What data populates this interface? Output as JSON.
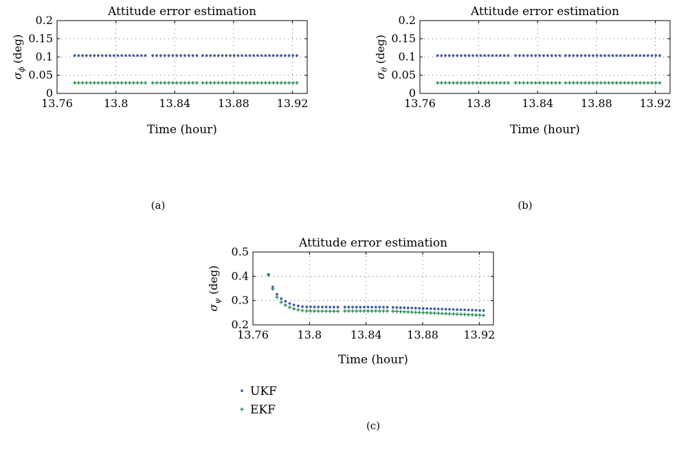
{
  "charts": [
    {
      "id": "a",
      "chart_data": {
        "type": "scatter",
        "title": "Attitude error estimation",
        "xlabel": "Time (hour)",
        "ylabel_symbol": "σ",
        "ylabel_sub": "ϕ",
        "ylabel_unit": " (deg)",
        "xlim": [
          13.76,
          13.93
        ],
        "ylim": [
          0,
          0.2
        ],
        "xticks": [
          "13.76",
          "13.8",
          "13.84",
          "13.88",
          "13.92"
        ],
        "yticks": [
          "0",
          "0.05",
          "0.1",
          "0.15",
          "0.2"
        ],
        "grid": true,
        "series": [
          {
            "color": "#3c5aa8",
            "marker": "dot",
            "segments": [
              {
                "x_start": 13.772,
                "x_end": 13.82,
                "count": 19,
                "y_start": 0.104,
                "y_end": 0.104
              },
              {
                "x_start": 13.825,
                "x_end": 13.855,
                "count": 12,
                "y_start": 0.104,
                "y_end": 0.104
              },
              {
                "x_start": 13.859,
                "x_end": 13.923,
                "count": 25,
                "y_start": 0.104,
                "y_end": 0.104
              }
            ]
          },
          {
            "color": "#1f8a4c",
            "marker": "plus",
            "segments": [
              {
                "x_start": 13.772,
                "x_end": 13.82,
                "count": 19,
                "y_start": 0.029,
                "y_end": 0.029
              },
              {
                "x_start": 13.825,
                "x_end": 13.855,
                "count": 12,
                "y_start": 0.029,
                "y_end": 0.029
              },
              {
                "x_start": 13.859,
                "x_end": 13.923,
                "count": 25,
                "y_start": 0.029,
                "y_end": 0.029
              }
            ]
          }
        ]
      },
      "panel_label": "(a)"
    },
    {
      "id": "b",
      "chart_data": {
        "type": "scatter",
        "title": "Attitude error estimation",
        "xlabel": "Time (hour)",
        "ylabel_symbol": "σ",
        "ylabel_sub": "θ",
        "ylabel_unit": " (deg)",
        "xlim": [
          13.76,
          13.93
        ],
        "ylim": [
          0,
          0.2
        ],
        "xticks": [
          "13.76",
          "13.8",
          "13.84",
          "13.88",
          "13.92"
        ],
        "yticks": [
          "0",
          "0.05",
          "0.1",
          "0.15",
          "0.2"
        ],
        "grid": true,
        "series": [
          {
            "color": "#3c5aa8",
            "marker": "dot",
            "segments": [
              {
                "x_start": 13.772,
                "x_end": 13.82,
                "count": 19,
                "y_start": 0.104,
                "y_end": 0.104
              },
              {
                "x_start": 13.825,
                "x_end": 13.855,
                "count": 12,
                "y_start": 0.104,
                "y_end": 0.104
              },
              {
                "x_start": 13.859,
                "x_end": 13.923,
                "count": 25,
                "y_start": 0.104,
                "y_end": 0.104
              }
            ]
          },
          {
            "color": "#1f8a4c",
            "marker": "plus",
            "segments": [
              {
                "x_start": 13.772,
                "x_end": 13.82,
                "count": 19,
                "y_start": 0.029,
                "y_end": 0.029
              },
              {
                "x_start": 13.825,
                "x_end": 13.855,
                "count": 12,
                "y_start": 0.029,
                "y_end": 0.029
              },
              {
                "x_start": 13.859,
                "x_end": 13.923,
                "count": 25,
                "y_start": 0.029,
                "y_end": 0.029
              }
            ]
          }
        ]
      },
      "panel_label": "(b)"
    },
    {
      "id": "c",
      "chart_data": {
        "type": "scatter",
        "title": "Attitude error estimation",
        "xlabel": "Time (hour)",
        "ylabel_symbol": "σ",
        "ylabel_sub": "ψ",
        "ylabel_unit": " (deg)",
        "xlim": [
          13.76,
          13.93
        ],
        "ylim": [
          0.2,
          0.5
        ],
        "xticks": [
          "13.76",
          "13.8",
          "13.84",
          "13.88",
          "13.92"
        ],
        "yticks": [
          "0.2",
          "0.3",
          "0.4",
          "0.5"
        ],
        "grid": true,
        "series": [
          {
            "color": "#3c5aa8",
            "marker": "dot",
            "decay": true,
            "points_head": [
              [
                13.771,
                0.408
              ],
              [
                13.774,
                0.356
              ],
              [
                13.777,
                0.326
              ],
              [
                13.78,
                0.308
              ],
              [
                13.783,
                0.297
              ],
              [
                13.786,
                0.288
              ],
              [
                13.789,
                0.282
              ],
              [
                13.792,
                0.278
              ],
              [
                13.795,
                0.275
              ]
            ],
            "segments": [
              {
                "x_start": 13.798,
                "x_end": 13.82,
                "count": 9,
                "y_start": 0.274,
                "y_end": 0.273
              },
              {
                "x_start": 13.825,
                "x_end": 13.855,
                "count": 12,
                "y_start": 0.273,
                "y_end": 0.273
              },
              {
                "x_start": 13.859,
                "x_end": 13.923,
                "count": 25,
                "y_start": 0.272,
                "y_end": 0.259
              }
            ]
          },
          {
            "color": "#1f8a4c",
            "marker": "plus",
            "decay": true,
            "points_head": [
              [
                13.771,
                0.405
              ],
              [
                13.774,
                0.348
              ],
              [
                13.777,
                0.314
              ],
              [
                13.78,
                0.293
              ],
              [
                13.783,
                0.281
              ],
              [
                13.786,
                0.272
              ],
              [
                13.789,
                0.266
              ],
              [
                13.792,
                0.262
              ],
              [
                13.795,
                0.259
              ]
            ],
            "segments": [
              {
                "x_start": 13.798,
                "x_end": 13.82,
                "count": 9,
                "y_start": 0.257,
                "y_end": 0.256
              },
              {
                "x_start": 13.825,
                "x_end": 13.855,
                "count": 12,
                "y_start": 0.257,
                "y_end": 0.257
              },
              {
                "x_start": 13.859,
                "x_end": 13.923,
                "count": 25,
                "y_start": 0.256,
                "y_end": 0.239
              }
            ]
          }
        ]
      },
      "panel_label": "(c)"
    }
  ],
  "legend": [
    {
      "label": "UKF",
      "color": "#3c5aa8",
      "marker": "dot"
    },
    {
      "label": "EKF",
      "color": "#1f8a4c",
      "marker": "plus"
    }
  ]
}
